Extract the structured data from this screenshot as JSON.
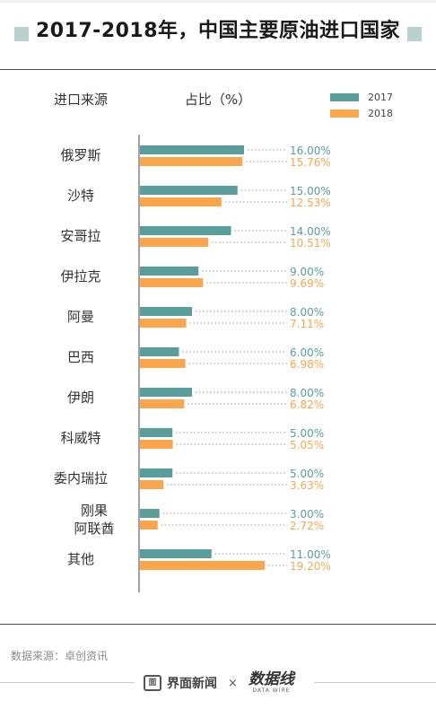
{
  "header": {
    "title": "2017-2018年，中国主要原油进口国家"
  },
  "chart_data": {
    "type": "bar",
    "orientation": "horizontal",
    "category_header": "进口来源",
    "value_header": "占比（%）",
    "categories": [
      "俄罗斯",
      "沙特",
      "安哥拉",
      "伊拉克",
      "阿曼",
      "巴西",
      "伊朗",
      "科威特",
      "委内瑞拉",
      "刚果\n阿联酋",
      "其他"
    ],
    "series": [
      {
        "name": "2017",
        "color": "#5a9e9b",
        "values": [
          16.0,
          15.0,
          14.0,
          9.0,
          8.0,
          6.0,
          8.0,
          5.0,
          5.0,
          3.0,
          11.0
        ],
        "labels": [
          "16.00%",
          "15.00%",
          "14.00%",
          "9.00%",
          "8.00%",
          "6.00%",
          "8.00%",
          "5.00%",
          "5.00%",
          "3.00%",
          "11.00%"
        ]
      },
      {
        "name": "2018",
        "color": "#fba64c",
        "values": [
          15.76,
          12.53,
          10.51,
          9.69,
          7.11,
          6.98,
          6.82,
          5.05,
          3.63,
          2.72,
          19.2
        ],
        "labels": [
          "15.76%",
          "12.53%",
          "10.51%",
          "9.69%",
          "7.11%",
          "6.98%",
          "6.82%",
          "5.05%",
          "3.63%",
          "2.72%",
          "19.20%"
        ]
      }
    ],
    "legend_position": "top-right"
  },
  "footer": {
    "source": "数据来源：卓创资讯",
    "brand": "界面新闻",
    "brand_icon": "面",
    "times": "×",
    "brand2": "数据线",
    "brand2_sub": "DATA WIRE"
  }
}
